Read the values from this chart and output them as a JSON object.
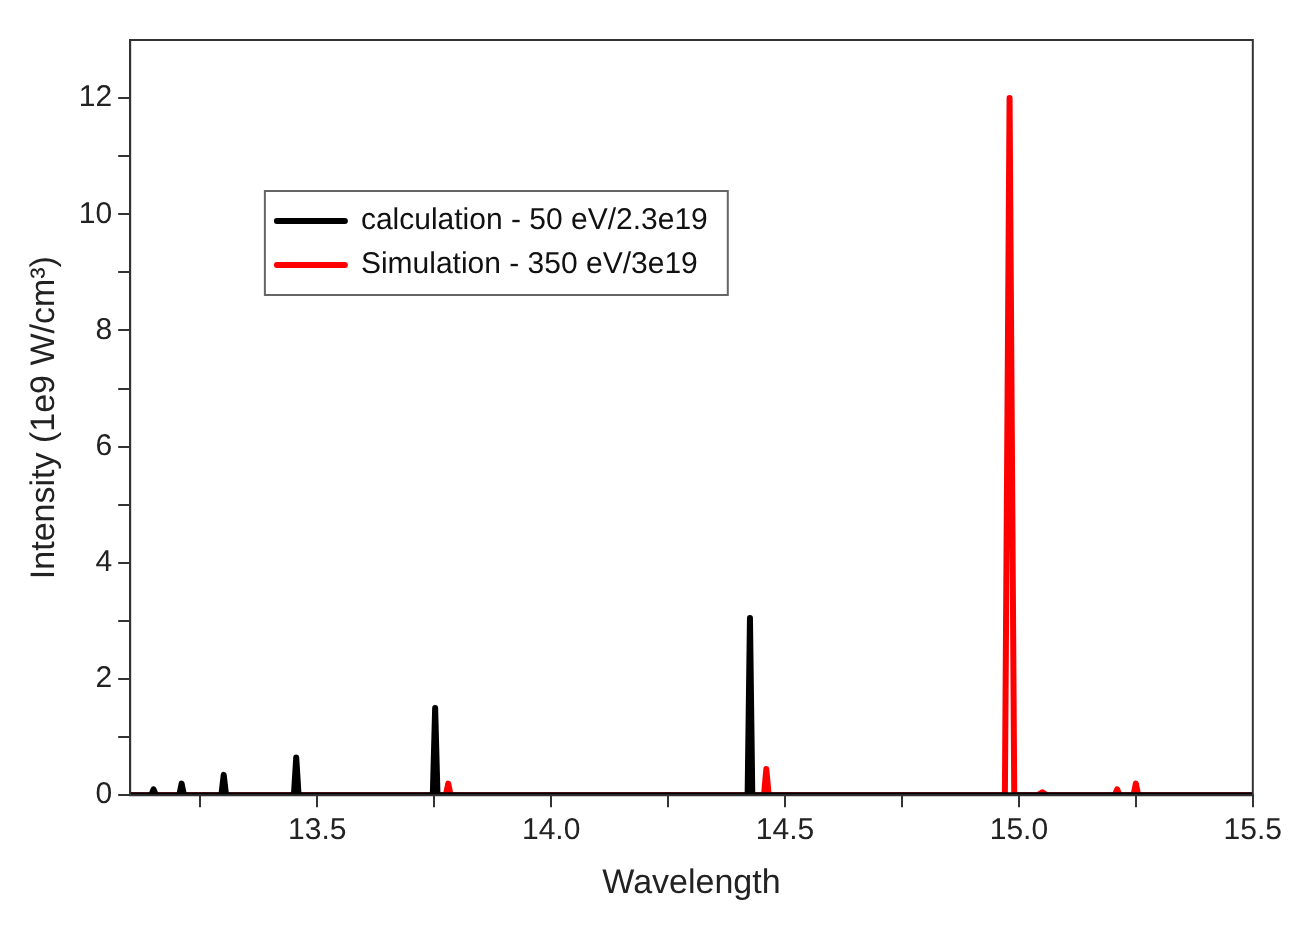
{
  "chart_data": {
    "type": "line",
    "xlabel": "Wavelength",
    "ylabel": "Intensity (1e9 W/cm³)",
    "xlim": [
      13.1,
      15.5
    ],
    "ylim": [
      0,
      13
    ],
    "xticks": [
      {
        "value": 13.25,
        "label": null
      },
      13.5,
      {
        "value": 13.75,
        "label": null
      },
      {
        "value": 14,
        "label": "14.0"
      },
      {
        "value": 14.25,
        "label": null
      },
      14.5,
      {
        "value": 14.75,
        "label": null
      },
      {
        "value": 15,
        "label": "15.0"
      },
      {
        "value": 15.25,
        "label": null
      },
      15.5
    ],
    "yticks": [
      0,
      {
        "value": 1,
        "label": null
      },
      2,
      {
        "value": 3,
        "label": null
      },
      4,
      {
        "value": 5,
        "label": null
      },
      6,
      {
        "value": 7,
        "label": null
      },
      8,
      {
        "value": 9,
        "label": null
      },
      10,
      {
        "value": 11,
        "label": null
      },
      12
    ],
    "grid": false,
    "legend": "top left",
    "marker": "none",
    "line_style": "solid",
    "series": [
      {
        "name": "calculation - 50 eV/2.3e19",
        "color": "#000000",
        "x": [
          13.1,
          13.145,
          13.15,
          13.155,
          13.205,
          13.21,
          13.215,
          13.295,
          13.3,
          13.305,
          13.45,
          13.455,
          13.46,
          13.747,
          13.752,
          13.757,
          14.42,
          14.425,
          14.43,
          15.5
        ],
        "values": [
          0,
          0,
          0.1,
          0,
          0,
          0.2,
          0,
          0,
          0.35,
          0,
          0,
          0.65,
          0,
          0,
          1.5,
          0,
          0,
          3.05,
          0,
          0
        ]
      },
      {
        "name": "Simulation - 350 eV/3e19",
        "color": "#ff0000",
        "x": [
          13.1,
          13.775,
          13.78,
          13.785,
          14.455,
          14.46,
          14.465,
          14.97,
          14.98,
          14.99,
          15.04,
          15.05,
          15.06,
          15.205,
          15.21,
          15.215,
          15.245,
          15.25,
          15.255,
          15.5
        ],
        "values": [
          0,
          0,
          0.2,
          0,
          0,
          0.45,
          0,
          0,
          12.0,
          0,
          0,
          0.05,
          0,
          0,
          0.1,
          0,
          0,
          0.2,
          0,
          0
        ]
      }
    ]
  }
}
